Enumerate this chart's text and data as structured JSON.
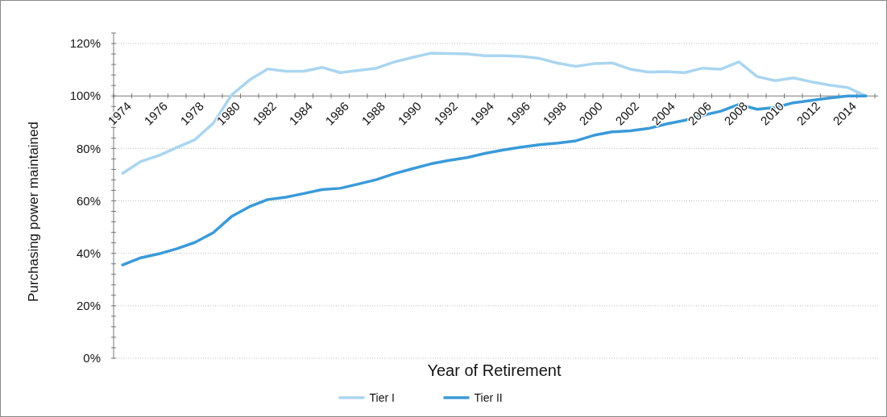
{
  "chart_data": {
    "type": "line",
    "xlabel": "Year of Retirement",
    "ylabel": "Purchasing power maintained",
    "categories": [
      "1974",
      null,
      "1976",
      null,
      "1978",
      null,
      "1980",
      null,
      "1982",
      null,
      "1984",
      null,
      "1986",
      null,
      "1988",
      null,
      "1990",
      null,
      "1992",
      null,
      "1994",
      null,
      "1996",
      null,
      "1998",
      null,
      "2000",
      null,
      "2002",
      null,
      "2004",
      null,
      "2006",
      null,
      "2008",
      null,
      "2010",
      null,
      "2012",
      null,
      "2014",
      null
    ],
    "series": [
      {
        "name": "Tier I",
        "color": "#aad5f0",
        "values": [
          70.5,
          75,
          77.3,
          80.4,
          83.4,
          89.6,
          100.3,
          106.1,
          110.3,
          109.4,
          109.4,
          110.9,
          108.9,
          109.7,
          110.6,
          113,
          114.7,
          116.3,
          116.2,
          116,
          115.3,
          115.3,
          115.1,
          114.3,
          112.5,
          111.3,
          112.3,
          112.6,
          110.2,
          109.1,
          109.3,
          108.9,
          110.6,
          110.2,
          113,
          107.4,
          105.8,
          106.9,
          105.4,
          104.1,
          103.2,
          100
        ]
      },
      {
        "name": "Tier II",
        "color": "#3a9ad9",
        "values": [
          35.6,
          38.3,
          39.8,
          41.8,
          44.2,
          47.9,
          54,
          57.8,
          60.5,
          61.4,
          62.8,
          64.3,
          64.8,
          66.4,
          68.1,
          70.4,
          72.3,
          74.1,
          75.4,
          76.5,
          78.1,
          79.4,
          80.5,
          81.4,
          82,
          82.9,
          85,
          86.3,
          86.7,
          87.6,
          89.3,
          90.7,
          92.6,
          94.2,
          96.8,
          94.9,
          95.6,
          97.4,
          98.3,
          99.2,
          100,
          100
        ]
      }
    ],
    "ylim": [
      0,
      124
    ],
    "yticks": [
      {
        "value": 0,
        "label": "0%"
      },
      {
        "value": 20,
        "label": "20%"
      },
      {
        "value": 40,
        "label": "40%"
      },
      {
        "value": 60,
        "label": "60%"
      },
      {
        "value": 80,
        "label": "80%"
      },
      {
        "value": 100,
        "label": "100%"
      },
      {
        "value": 120,
        "label": "120%"
      }
    ],
    "grid": "y",
    "legend": "bottom",
    "marker": "none",
    "line_style": "solid"
  }
}
